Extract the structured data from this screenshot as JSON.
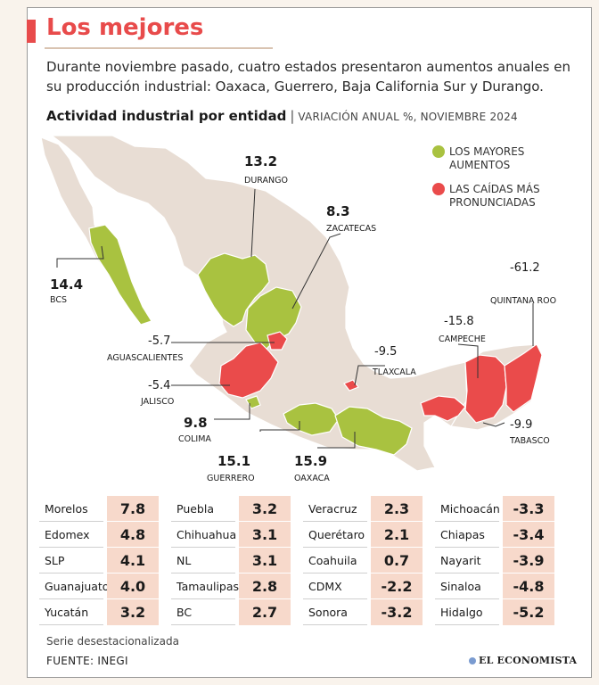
{
  "header": {
    "title": "Los mejores",
    "intro": "Durante noviembre pasado, cuatro estados presentaron aumentos anuales en su producción industrial: Oaxaca, Guerrero, Baja California Sur y Durango.",
    "subtitle_main": "Actividad industrial por entidad",
    "subtitle_sep": "|",
    "subtitle_sub": "VARIACIÓN ANUAL %, NOVIEMBRE 2024"
  },
  "colors": {
    "accent": "#e84b4b",
    "increase": "#a9c240",
    "decrease": "#ea4b4b",
    "base_land": "#e8ddd4",
    "value_cell": "#f7d9cb"
  },
  "legend": {
    "increase_line1": "LOS MAYORES",
    "increase_line2": "AUMENTOS",
    "decrease_line1": "LAS CAÍDAS MÁS",
    "decrease_line2": "PRONUNCIADAS"
  },
  "map_labels": {
    "durango": {
      "value": "13.2",
      "name": "DURANGO"
    },
    "zacatecas": {
      "value": "8.3",
      "name": "ZACATECAS"
    },
    "bcs": {
      "value": "14.4",
      "name": "BCS"
    },
    "aguascalientes": {
      "value": "-5.7",
      "name": "AGUASCALIENTES"
    },
    "jalisco": {
      "value": "-5.4",
      "name": "JALISCO"
    },
    "colima": {
      "value": "9.8",
      "name": "COLIMA"
    },
    "guerrero": {
      "value": "15.1",
      "name": "GUERRERO"
    },
    "oaxaca": {
      "value": "15.9",
      "name": "OAXACA"
    },
    "tlaxcala": {
      "value": "-9.5",
      "name": "TLAXCALA"
    },
    "campeche": {
      "value": "-15.8",
      "name": "CAMPECHE"
    },
    "quintana_roo": {
      "value": "-61.2",
      "name": "QUINTANA ROO"
    },
    "tabasco": {
      "value": "-9.9",
      "name": "TABASCO"
    }
  },
  "table": [
    [
      {
        "name": "Morelos",
        "value": "7.8"
      },
      {
        "name": "Edomex",
        "value": "4.8"
      },
      {
        "name": "SLP",
        "value": "4.1"
      },
      {
        "name": "Guanajuato",
        "value": "4.0"
      },
      {
        "name": "Yucatán",
        "value": "3.2"
      }
    ],
    [
      {
        "name": "Puebla",
        "value": "3.2"
      },
      {
        "name": "Chihuahua",
        "value": "3.1"
      },
      {
        "name": "NL",
        "value": "3.1"
      },
      {
        "name": "Tamaulipas",
        "value": "2.8"
      },
      {
        "name": "BC",
        "value": "2.7"
      }
    ],
    [
      {
        "name": "Veracruz",
        "value": "2.3"
      },
      {
        "name": "Querétaro",
        "value": "2.1"
      },
      {
        "name": "Coahuila",
        "value": "0.7"
      },
      {
        "name": "CDMX",
        "value": "-2.2"
      },
      {
        "name": "Sonora",
        "value": "-3.2"
      }
    ],
    [
      {
        "name": "Michoacán",
        "value": "-3.3"
      },
      {
        "name": "Chiapas",
        "value": "-3.4"
      },
      {
        "name": "Nayarit",
        "value": "-3.9"
      },
      {
        "name": "Sinaloa",
        "value": "-4.8"
      },
      {
        "name": "Hidalgo",
        "value": "-5.2"
      }
    ]
  ],
  "footer": {
    "note": "Serie desestacionalizada",
    "source": "FUENTE: INEGI",
    "brand": "EL ECONOMISTA"
  }
}
